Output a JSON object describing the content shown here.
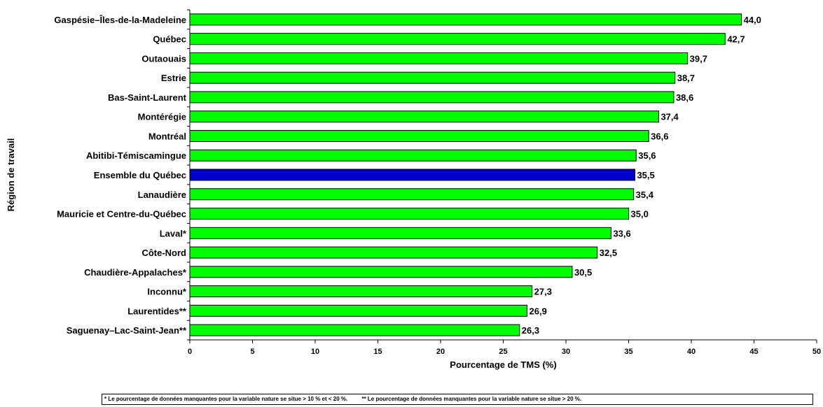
{
  "chart_data": {
    "type": "bar",
    "orientation": "horizontal",
    "categories": [
      "Gaspésie–Îles-de-la-Madeleine",
      "Québec",
      "Outaouais",
      "Estrie",
      "Bas-Saint-Laurent",
      "Montérégie",
      "Montréal",
      "Abitibi-Témiscamingue",
      "Ensemble du Québec",
      "Lanaudière",
      "Mauricie et Centre-du-Québec",
      "Laval*",
      "Côte-Nord",
      "Chaudière-Appalaches*",
      "Inconnu*",
      "Laurentides**",
      "Saguenay–Lac-Saint-Jean**"
    ],
    "values": [
      44.0,
      42.7,
      39.7,
      38.7,
      38.6,
      37.4,
      36.6,
      35.6,
      35.5,
      35.4,
      35.0,
      33.6,
      32.5,
      30.5,
      27.3,
      26.9,
      26.3
    ],
    "value_labels": [
      "44,0",
      "42,7",
      "39,7",
      "38,7",
      "38,6",
      "37,4",
      "36,6",
      "35,6",
      "35,5",
      "35,4",
      "35,0",
      "33,6",
      "32,5",
      "30,5",
      "27,3",
      "26,9",
      "26,3"
    ],
    "highlight_category": "Ensemble du Québec",
    "xlabel": "Pourcentage de TMS (%)",
    "ylabel": "Région de travail",
    "xlim": [
      0,
      50
    ],
    "xticks": [
      "0",
      "5",
      "10",
      "15",
      "20",
      "25",
      "30",
      "35",
      "40",
      "45",
      "50"
    ],
    "grid": false,
    "colors": {
      "bar": "#00ff00",
      "highlight": "#0000cc",
      "outline": "#000000"
    }
  },
  "footnotes": [
    "* Le pourcentage de données manquantes pour la variable nature se situe > 10 % et < 20 %.",
    "** Le pourcentage de données manquantes pour la variable nature se situe > 20 %."
  ]
}
